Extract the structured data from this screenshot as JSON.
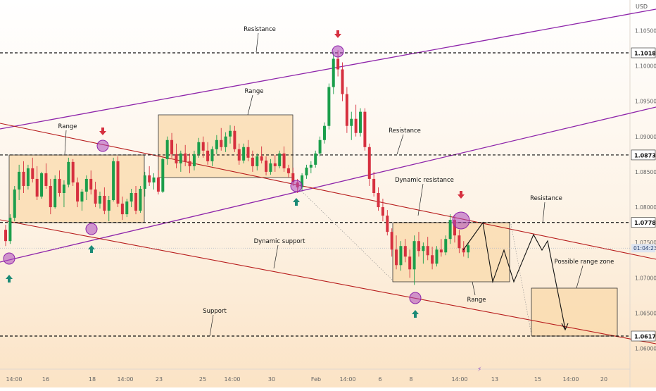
{
  "chart_data": {
    "type": "candlestick",
    "title": "",
    "currency": "USD",
    "ylim": [
      1.0565,
      1.1095
    ],
    "y_ticks": [
      1.06,
      1.065,
      1.07,
      1.075,
      1.08,
      1.085,
      1.09,
      1.095,
      1.1,
      1.105
    ],
    "y_tick_labels": [
      "1.06000",
      "1.06500",
      "1.07000",
      "1.07500",
      "1.08000",
      "1.08500",
      "1.09000",
      "1.09500",
      "1.10000",
      "1.10500"
    ],
    "x_tick_labels": [
      "14:00",
      "16",
      "18",
      "14:00",
      "23",
      "25",
      "14:00",
      "30",
      "Feb",
      "14:00",
      "6",
      "8",
      "14:00",
      "13",
      "15",
      "14:00",
      "20"
    ],
    "current_price_label": "01:04:23",
    "horizontal_levels": [
      {
        "value": 1.10184,
        "label": "1.10184"
      },
      {
        "value": 1.08739,
        "label": "1.08739"
      },
      {
        "value": 1.07784,
        "label": "1.07784"
      },
      {
        "value": 1.06176,
        "label": "1.06176"
      }
    ],
    "annotations": [
      "Resistance",
      "Range",
      "Range",
      "Resistance",
      "Dynamic resistance",
      "Resistance",
      "Dynamic support",
      "Possible range zone",
      "Range",
      "Support"
    ],
    "candles": [
      [
        1.0768,
        1.0775,
        1.0745,
        1.0752
      ],
      [
        1.0752,
        1.079,
        1.0748,
        1.0785
      ],
      [
        1.0785,
        1.083,
        1.078,
        1.0825
      ],
      [
        1.0825,
        1.086,
        1.081,
        1.085
      ],
      [
        1.085,
        1.0865,
        1.082,
        1.083
      ],
      [
        1.083,
        1.086,
        1.0825,
        1.0855
      ],
      [
        1.0855,
        1.087,
        1.0835,
        1.084
      ],
      [
        1.084,
        1.0858,
        1.081,
        1.0815
      ],
      [
        1.0815,
        1.085,
        1.0812,
        1.0848
      ],
      [
        1.0848,
        1.0862,
        1.0826,
        1.083
      ],
      [
        1.083,
        1.084,
        1.079,
        1.08
      ],
      [
        1.08,
        1.0845,
        1.0798,
        1.084
      ],
      [
        1.084,
        1.0852,
        1.0815,
        1.082
      ],
      [
        1.082,
        1.0838,
        1.08,
        1.0832
      ],
      [
        1.0832,
        1.087,
        1.0828,
        1.0864
      ],
      [
        1.0864,
        1.0868,
        1.083,
        1.0835
      ],
      [
        1.0835,
        1.0842,
        1.08,
        1.0808
      ],
      [
        1.0808,
        1.0826,
        1.0795,
        1.0822
      ],
      [
        1.0822,
        1.0845,
        1.081,
        1.084
      ],
      [
        1.084,
        1.0852,
        1.0818,
        1.0825
      ],
      [
        1.0825,
        1.0836,
        1.08,
        1.0805
      ],
      [
        1.0805,
        1.0822,
        1.0798,
        1.0816
      ],
      [
        1.0816,
        1.0828,
        1.079,
        1.0795
      ],
      [
        1.0795,
        1.0816,
        1.078,
        1.081
      ],
      [
        1.081,
        1.087,
        1.0808,
        1.0865
      ],
      [
        1.0865,
        1.0872,
        1.08,
        1.0805
      ],
      [
        1.0805,
        1.0815,
        1.0782,
        1.079
      ],
      [
        1.079,
        1.0812,
        1.0786,
        1.0808
      ],
      [
        1.0808,
        1.0826,
        1.08,
        1.082
      ],
      [
        1.082,
        1.083,
        1.079,
        1.0795
      ],
      [
        1.0795,
        1.083,
        1.0792,
        1.0826
      ],
      [
        1.0826,
        1.085,
        1.0815,
        1.0845
      ],
      [
        1.0845,
        1.0858,
        1.083,
        1.0835
      ],
      [
        1.0835,
        1.0848,
        1.0825,
        1.0842
      ],
      [
        1.0842,
        1.0852,
        1.0818,
        1.0822
      ],
      [
        1.0822,
        1.087,
        1.082,
        1.0868
      ],
      [
        1.0868,
        1.09,
        1.086,
        1.0895
      ],
      [
        1.0895,
        1.0905,
        1.087,
        1.0875
      ],
      [
        1.0875,
        1.089,
        1.0855,
        1.0862
      ],
      [
        1.0862,
        1.088,
        1.085,
        1.0876
      ],
      [
        1.0876,
        1.0888,
        1.0858,
        1.0865
      ],
      [
        1.0865,
        1.0876,
        1.0848,
        1.0858
      ],
      [
        1.0858,
        1.088,
        1.0852,
        1.0875
      ],
      [
        1.0875,
        1.0898,
        1.087,
        1.0892
      ],
      [
        1.0892,
        1.09,
        1.087,
        1.088
      ],
      [
        1.088,
        1.0892,
        1.086,
        1.0865
      ],
      [
        1.0865,
        1.0886,
        1.0858,
        1.0882
      ],
      [
        1.0882,
        1.0902,
        1.0875,
        1.0895
      ],
      [
        1.0895,
        1.0912,
        1.088,
        1.0885
      ],
      [
        1.0885,
        1.0906,
        1.0878,
        1.09
      ],
      [
        1.09,
        1.0916,
        1.089,
        1.0908
      ],
      [
        1.0908,
        1.0915,
        1.0878,
        1.0882
      ],
      [
        1.0882,
        1.089,
        1.086,
        1.0866
      ],
      [
        1.0866,
        1.089,
        1.0862,
        1.0885
      ],
      [
        1.0885,
        1.0895,
        1.0865,
        1.087
      ],
      [
        1.087,
        1.088,
        1.085,
        1.0858
      ],
      [
        1.0858,
        1.0876,
        1.0852,
        1.0872
      ],
      [
        1.0872,
        1.0886,
        1.0862,
        1.0866
      ],
      [
        1.0866,
        1.0872,
        1.0845,
        1.085
      ],
      [
        1.085,
        1.0868,
        1.0846,
        1.0862
      ],
      [
        1.0862,
        1.0874,
        1.085,
        1.0858
      ],
      [
        1.0858,
        1.088,
        1.0855,
        1.0876
      ],
      [
        1.0876,
        1.0886,
        1.085,
        1.0855
      ],
      [
        1.0855,
        1.086,
        1.0842,
        1.0848
      ],
      [
        1.0848,
        1.0856,
        1.083,
        1.0835
      ],
      [
        1.0835,
        1.084,
        1.082,
        1.0828
      ],
      [
        1.0828,
        1.0848,
        1.0824,
        1.0845
      ],
      [
        1.0845,
        1.086,
        1.084,
        1.0856
      ],
      [
        1.0856,
        1.0865,
        1.0848,
        1.086
      ],
      [
        1.086,
        1.088,
        1.0856,
        1.0876
      ],
      [
        1.0876,
        1.09,
        1.0872,
        1.0895
      ],
      [
        1.0895,
        1.092,
        1.089,
        1.0915
      ],
      [
        1.0915,
        1.0975,
        1.091,
        1.097
      ],
      [
        1.097,
        1.102,
        1.096,
        1.101
      ],
      [
        1.101,
        1.1022,
        1.0985,
        1.0995
      ],
      [
        1.0995,
        1.1005,
        1.095,
        1.096
      ],
      [
        1.096,
        1.097,
        1.0905,
        1.0915
      ],
      [
        1.0915,
        1.0935,
        1.0895,
        1.0925
      ],
      [
        1.0925,
        1.0945,
        1.09,
        1.0905
      ],
      [
        1.0905,
        1.094,
        1.09,
        1.0935
      ],
      [
        1.0935,
        1.094,
        1.088,
        1.0885
      ],
      [
        1.0885,
        1.089,
        1.083,
        1.084
      ],
      [
        1.084,
        1.085,
        1.0815,
        1.082
      ],
      [
        1.082,
        1.0828,
        1.0795,
        1.08
      ],
      [
        1.08,
        1.0812,
        1.078,
        1.0788
      ],
      [
        1.0788,
        1.0796,
        1.076,
        1.0765
      ],
      [
        1.0765,
        1.077,
        1.073,
        1.074
      ],
      [
        1.074,
        1.076,
        1.0712,
        1.0718
      ],
      [
        1.0718,
        1.0752,
        1.071,
        1.0745
      ],
      [
        1.0745,
        1.0755,
        1.0722,
        1.073
      ],
      [
        1.073,
        1.074,
        1.07,
        1.0712
      ],
      [
        1.0712,
        1.076,
        1.069,
        1.0752
      ],
      [
        1.0752,
        1.0765,
        1.073,
        1.0738
      ],
      [
        1.0738,
        1.075,
        1.072,
        1.0745
      ],
      [
        1.0745,
        1.0758,
        1.0725,
        1.0732
      ],
      [
        1.0732,
        1.0744,
        1.0712,
        1.072
      ],
      [
        1.072,
        1.0745,
        1.0716,
        1.074
      ],
      [
        1.074,
        1.0755,
        1.073,
        1.0736
      ],
      [
        1.0736,
        1.076,
        1.0732,
        1.0755
      ],
      [
        1.0755,
        1.079,
        1.0748,
        1.0782
      ],
      [
        1.0782,
        1.0788,
        1.075,
        1.076
      ],
      [
        1.076,
        1.0768,
        1.0735,
        1.0742
      ],
      [
        1.0742,
        1.0752,
        1.073,
        1.0736
      ],
      [
        1.0736,
        1.075,
        1.0728,
        1.0746
      ]
    ],
    "projection_path": [
      [
        1.0778,
        1.07
      ],
      [
        1.0778,
        1.07
      ],
      [
        1.077,
        1.07
      ],
      [
        1.0778,
        1.072
      ],
      [
        1.064,
        1.0617
      ]
    ],
    "possible_range_zone": [
      1.0617,
      1.0683
    ]
  }
}
